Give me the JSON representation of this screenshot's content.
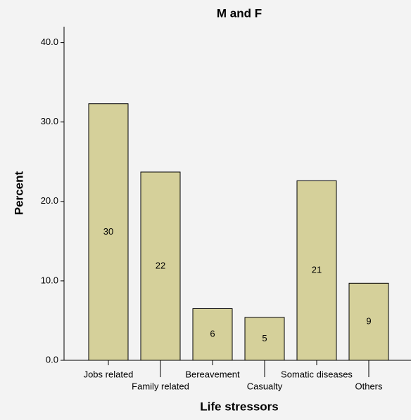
{
  "chart_data": {
    "type": "bar",
    "title": "M and F",
    "x_label": "Life stressors",
    "y_label": "Percent",
    "categories": [
      "Jobs related",
      "Family related",
      "Bereavement",
      "Casualty",
      "Somatic diseases",
      "Others"
    ],
    "values": [
      32.3,
      23.7,
      6.5,
      5.4,
      22.6,
      9.7
    ],
    "counts": [
      30,
      22,
      6,
      5,
      21,
      9
    ],
    "color": "#d5d09a",
    "ylim": [
      0,
      42
    ],
    "yticks": [
      {
        "value": 0,
        "label": "0.0"
      },
      {
        "value": 10,
        "label": "10.0"
      },
      {
        "value": 20,
        "label": "20.0"
      },
      {
        "value": 30,
        "label": "30.0"
      },
      {
        "value": 40,
        "label": "40.0"
      }
    ]
  }
}
